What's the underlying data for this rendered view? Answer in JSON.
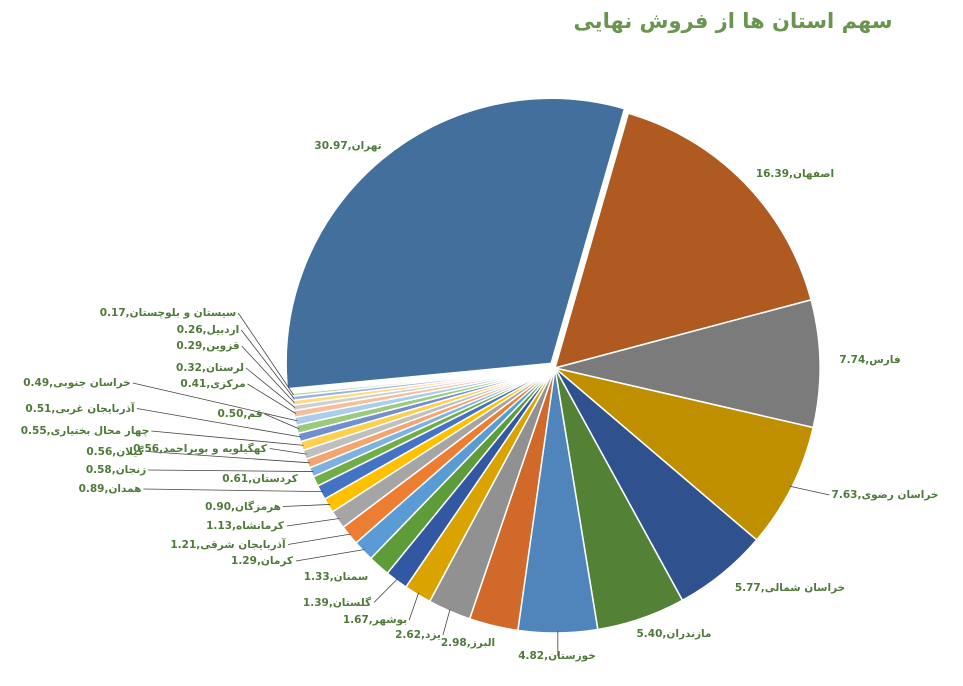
{
  "chart_data": {
    "type": "pie",
    "title": "سهم استان ها از فروش نهایی",
    "categories": [
      "تهران",
      "اصفهان",
      "فارس",
      "خراسان رضوی",
      "خراسان شمالی",
      "مازندران",
      "خوزستان",
      "البرز",
      "یزد",
      "بوشهر",
      "گلستان",
      "سمنان",
      "کرمان",
      "آذربایجان شرقی",
      "کرمانشاه",
      "هرمزگان",
      "همدان",
      "کردستان",
      "زنجان",
      "گیلان",
      "کهگیلویه و بویراحمد",
      "چهار محال بختیاری",
      "آذربایجان غربی",
      "قم",
      "خراسان جنوبی",
      "مرکزی",
      "لرستان",
      "قزوین",
      "اردبیل",
      "سیستان و بلوچستان"
    ],
    "values": [
      30.97,
      16.39,
      7.74,
      7.63,
      5.77,
      5.4,
      4.82,
      2.98,
      2.62,
      1.67,
      1.39,
      1.33,
      1.29,
      1.21,
      1.13,
      0.9,
      0.89,
      0.61,
      0.58,
      0.56,
      0.56,
      0.55,
      0.51,
      0.5,
      0.49,
      0.41,
      0.32,
      0.29,
      0.26,
      0.17
    ],
    "value_labels": [
      "تهران,30.97",
      "اصفهان,16.39",
      "فارس,7.74",
      "خراسان رضوی,7.63",
      "خراسان شمالی,5.77",
      "مازندران,5.40",
      "خوزستان,4.82",
      "البرز,2.98",
      "یزد,2.62",
      "بوشهر,1.67",
      "گلستان,1.39",
      "سمنان,1.33",
      "کرمان,1.29",
      "آذربایجان شرقی,1.21",
      "کرمانشاه,1.13",
      "هرمزگان,0.90",
      "همدان,0.89",
      "کردستان,0.61",
      "زنجان,0.58",
      "گیلان,0.56",
      "کهگیلویه و بویراحمد,0.56",
      "چهار محال بختیاری,0.55",
      "آذربایجان غربی,0.51",
      "قم,0.50",
      "خراسان جنوبی,0.49",
      "مرکزی,0.41",
      "لرستان,0.32",
      "قزوین,0.29",
      "اردبیل,0.26",
      "سیستان و بلوچستان,0.17"
    ],
    "colors": [
      "#426f9c",
      "#ae5a21",
      "#7b7b7b",
      "#bf8f00",
      "#2f528f",
      "#538135",
      "#4f85bb",
      "#d0692a",
      "#919191",
      "#daa300",
      "#3358a3",
      "#5e9c3a",
      "#5b9bd5",
      "#ed7d31",
      "#a5a5a5",
      "#ffc000",
      "#4472c4",
      "#70ad47",
      "#7fb1e0",
      "#f4a46e",
      "#bfbfbf",
      "#ffd04d",
      "#6f8fd0",
      "#9acb7a",
      "#a9cdea",
      "#f7be9a",
      "#cfcfcf",
      "#ffdb80",
      "#9cb2e0",
      "#b4d79c"
    ]
  }
}
